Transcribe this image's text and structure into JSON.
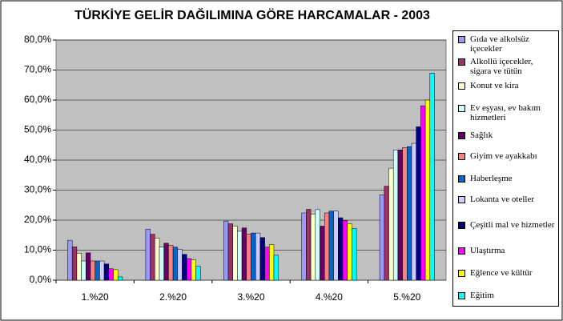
{
  "chart_data": {
    "type": "bar",
    "title": "TÜRKİYE GELİR DAĞILIMINA GÖRE HARCAMALAR - 2003",
    "categories": [
      "1.%20",
      "2.%20",
      "3.%20",
      "4.%20",
      "5.%20"
    ],
    "ylim": [
      0,
      80
    ],
    "yticks": [
      {
        "value": 0,
        "label": "0,0%"
      },
      {
        "value": 10,
        "label": "10,0%"
      },
      {
        "value": 20,
        "label": "20,0%"
      },
      {
        "value": 30,
        "label": "30,0%"
      },
      {
        "value": 40,
        "label": "40,0%"
      },
      {
        "value": 50,
        "label": "50,0%"
      },
      {
        "value": 60,
        "label": "60,0%"
      },
      {
        "value": 70,
        "label": "70,0%"
      },
      {
        "value": 80,
        "label": "80,0%"
      }
    ],
    "grid": true,
    "series": [
      {
        "name": "Gıda ve alkolsüz içecekler",
        "color": "#9999ff",
        "values": [
          13.3,
          17.0,
          19.7,
          22.4,
          28.4
        ]
      },
      {
        "name": "Alkollü içecekler, sigara ve tütün",
        "color": "#993366",
        "values": [
          11.1,
          15.3,
          18.8,
          23.6,
          31.3
        ]
      },
      {
        "name": "Konut ve kira",
        "color": "#ffffcc",
        "values": [
          9.0,
          14.0,
          18.0,
          22.0,
          37.3
        ]
      },
      {
        "name": "Ev eşyası, ev bakım hizmetleri",
        "color": "#ccffff",
        "values": [
          6.4,
          11.0,
          16.3,
          23.5,
          43.4
        ]
      },
      {
        "name": "Sağlık",
        "color": "#660066",
        "values": [
          9.1,
          12.3,
          17.4,
          18.0,
          43.4
        ]
      },
      {
        "name": "Giyim ve ayakkabı",
        "color": "#ff8080",
        "values": [
          6.4,
          11.6,
          15.4,
          22.4,
          44.2
        ]
      },
      {
        "name": "Haberleşme",
        "color": "#0066cc",
        "values": [
          6.4,
          11.0,
          15.7,
          23.0,
          44.5
        ]
      },
      {
        "name": "Lokanta ve oteller",
        "color": "#ccccff",
        "values": [
          6.4,
          10.2,
          15.7,
          23.0,
          45.6
        ]
      },
      {
        "name": "Çeşitli mal ve hizmetler",
        "color": "#000080",
        "values": [
          5.4,
          8.6,
          14.2,
          20.8,
          51.1
        ]
      },
      {
        "name": "Ulaştırma",
        "color": "#ff00ff",
        "values": [
          3.8,
          7.2,
          11.0,
          19.8,
          58.1
        ]
      },
      {
        "name": "Eğlence ve kültür",
        "color": "#ffff00",
        "values": [
          3.5,
          6.8,
          11.8,
          18.8,
          60.0
        ]
      },
      {
        "name": "Eğitim",
        "color": "#00ffff",
        "values": [
          1.1,
          4.6,
          8.3,
          17.2,
          69.0
        ]
      }
    ]
  }
}
